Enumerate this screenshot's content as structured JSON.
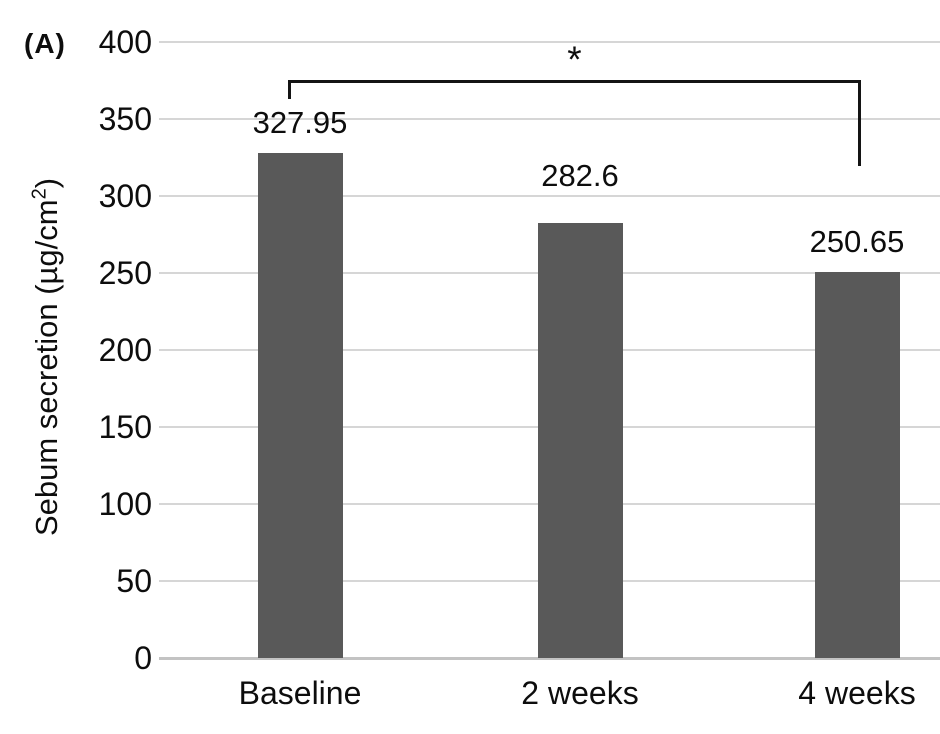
{
  "panel_label": "(A)",
  "axis": {
    "y_title_main": "Sebum secretion (µg/cm",
    "y_title_sup": "2",
    "y_title_close": ")"
  },
  "chart_data": {
    "type": "bar",
    "title": "",
    "xlabel": "",
    "ylabel": "Sebum secretion (µg/cm²)",
    "categories": [
      "Baseline",
      "2 weeks",
      "4 weeks"
    ],
    "values": [
      327.95,
      282.6,
      250.65
    ],
    "value_labels": [
      "327.95",
      "282.6",
      "250.65"
    ],
    "ylim": [
      0,
      400
    ],
    "yticks": [
      0,
      50,
      100,
      150,
      200,
      250,
      300,
      350,
      400
    ],
    "grid": "horizontal",
    "legend": "none",
    "bar_color": "#595959",
    "gridline_color": "#d6d6d6",
    "axis_line_color": "#c3c3c3",
    "annotation_color": "#141414",
    "annotations": [
      {
        "type": "significance-bracket",
        "from": "Baseline",
        "to": "4 weeks",
        "label": "*"
      }
    ]
  }
}
